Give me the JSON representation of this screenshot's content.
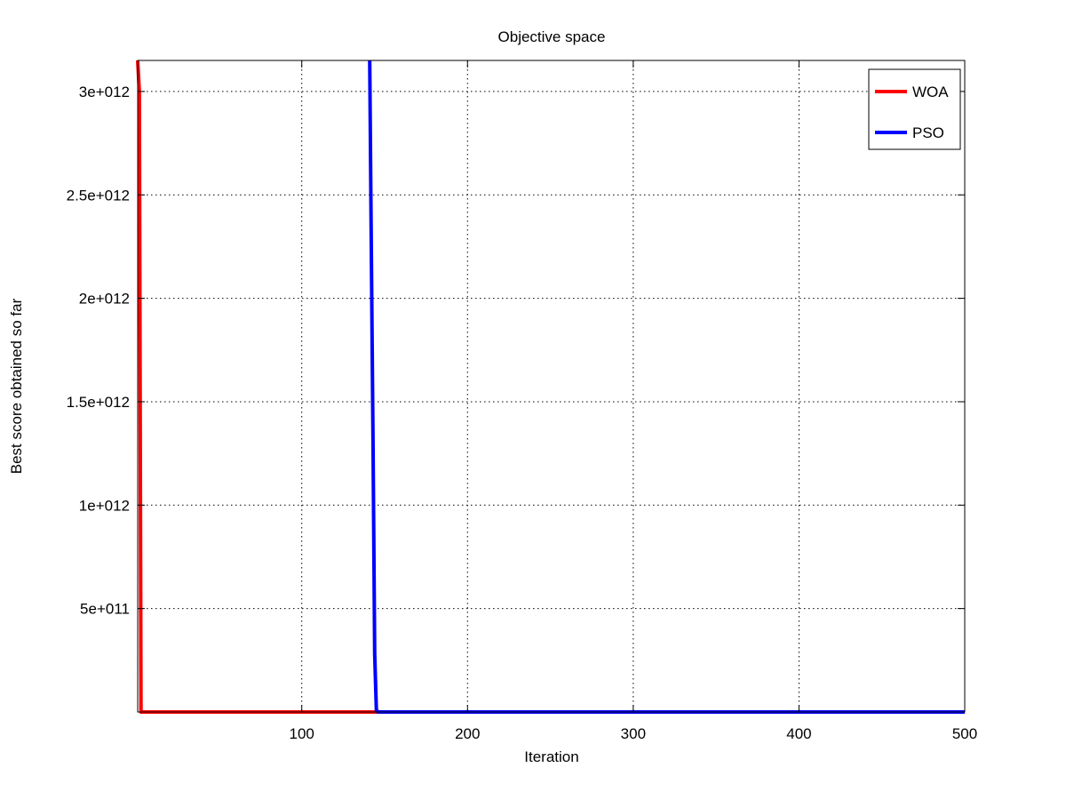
{
  "chart_data": {
    "type": "line",
    "title": "Objective space",
    "xlabel": "Iteration",
    "ylabel": "Best score obtained so far",
    "xlim": [
      1,
      500
    ],
    "ylim": [
      0,
      3150000000000.0
    ],
    "x_ticks": [
      100,
      200,
      300,
      400,
      500
    ],
    "x_tick_labels": [
      "100",
      "200",
      "300",
      "400",
      "500"
    ],
    "y_ticks": [
      500000000000.0,
      1000000000000.0,
      1500000000000.0,
      2000000000000.0,
      2500000000000.0,
      3000000000000.0
    ],
    "y_tick_labels": [
      "5e+011",
      "1e+012",
      "1.5e+012",
      "2e+012",
      "2.5e+012",
      "3e+012"
    ],
    "grid": true,
    "grid_style": "dotted",
    "legend_position": "top-right",
    "series": [
      {
        "name": "WOA",
        "color": "#ff0000",
        "x": [
          1,
          2,
          3,
          500
        ],
        "y": [
          3150000000000.0,
          3000000000000.0,
          0,
          0
        ]
      },
      {
        "name": "PSO",
        "color": "#0000ff",
        "x": [
          141,
          142,
          143,
          144,
          145,
          146,
          500
        ],
        "y": [
          3150000000000.0,
          2200000000000.0,
          1300000000000.0,
          280000000000.0,
          10000000000.0,
          0,
          0
        ]
      }
    ]
  }
}
